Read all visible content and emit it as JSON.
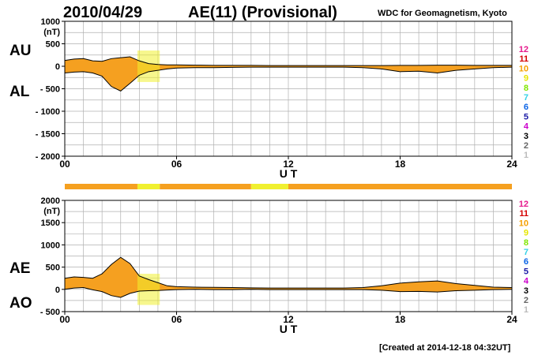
{
  "header": {
    "date": "2010/04/29",
    "title": "AE(11) (Provisional)",
    "source": "WDC for Geomagnetism, Kyoto"
  },
  "footer": {
    "created": "[Created at 2014-12-18 04:32UT]"
  },
  "legend_levels": [
    {
      "label": "12",
      "color": "#e6198c"
    },
    {
      "label": "11",
      "color": "#d40000"
    },
    {
      "label": "10",
      "color": "#f5a000"
    },
    {
      "label": "9",
      "color": "#e6e600"
    },
    {
      "label": "8",
      "color": "#7fe600"
    },
    {
      "label": "7",
      "color": "#33d2e6"
    },
    {
      "label": "6",
      "color": "#0a64e6"
    },
    {
      "label": "5",
      "color": "#1a1aa6"
    },
    {
      "label": "4",
      "color": "#cc00cc"
    },
    {
      "label": "3",
      "color": "#000000"
    },
    {
      "label": "2",
      "color": "#666666"
    },
    {
      "label": "1",
      "color": "#bbbbbb"
    }
  ],
  "colors": {
    "station_10": "#f5a020",
    "station_9": "#f0f030",
    "grid": "#b0b0b0"
  },
  "chart_data": [
    {
      "type": "area",
      "upper_label": "AU",
      "lower_label": "AL",
      "ylabel": "(nT)",
      "xlabel": "U T",
      "xlim": [
        0,
        24
      ],
      "ylim": [
        -2000,
        1000
      ],
      "yticks": [
        1000,
        500,
        0,
        -500,
        -1000,
        -1500,
        -2000
      ],
      "ytick_labels": [
        "1000",
        "500",
        "0",
        "- 500",
        "- 1000",
        "- 1500",
        "- 2000"
      ],
      "xticks": [
        0,
        6,
        12,
        18,
        24
      ],
      "xtick_labels": [
        "00",
        "06",
        "12",
        "18",
        "24"
      ],
      "series": [
        {
          "name": "AU",
          "x": [
            0,
            0.5,
            1,
            1.5,
            2,
            2.5,
            3,
            3.5,
            4,
            4.5,
            5,
            5.5,
            6,
            7,
            8,
            9,
            10,
            11,
            12,
            13,
            14,
            15,
            16,
            17,
            18,
            19,
            20,
            21,
            22,
            23,
            24
          ],
          "values": [
            130,
            160,
            170,
            120,
            110,
            170,
            190,
            210,
            120,
            60,
            40,
            30,
            30,
            25,
            20,
            20,
            20,
            15,
            15,
            15,
            15,
            15,
            15,
            15,
            20,
            20,
            25,
            25,
            20,
            20,
            20
          ]
        },
        {
          "name": "AL",
          "x": [
            0,
            0.5,
            1,
            1.5,
            2,
            2.5,
            3,
            3.5,
            4,
            4.5,
            5,
            5.5,
            6,
            7,
            8,
            9,
            10,
            11,
            12,
            13,
            14,
            15,
            16,
            17,
            18,
            19,
            20,
            21,
            22,
            23,
            24
          ],
          "values": [
            -150,
            -130,
            -120,
            -150,
            -220,
            -450,
            -550,
            -380,
            -200,
            -120,
            -90,
            -60,
            -40,
            -30,
            -30,
            -25,
            -20,
            -20,
            -20,
            -20,
            -20,
            -20,
            -30,
            -60,
            -120,
            -110,
            -150,
            -90,
            -60,
            -30,
            -20
          ]
        }
      ]
    },
    {
      "type": "area",
      "upper_label": "AE",
      "lower_label": "AO",
      "ylabel": "(nT)",
      "xlabel": "U T",
      "xlim": [
        0,
        24
      ],
      "ylim": [
        -500,
        2000
      ],
      "yticks": [
        2000,
        1500,
        1000,
        500,
        0,
        -500
      ],
      "ytick_labels": [
        "2000",
        "1500",
        "1000",
        "500",
        "0",
        "- 500"
      ],
      "xticks": [
        0,
        6,
        12,
        18,
        24
      ],
      "xtick_labels": [
        "00",
        "06",
        "12",
        "18",
        "24"
      ],
      "series": [
        {
          "name": "AE",
          "x": [
            0,
            0.5,
            1,
            1.5,
            2,
            2.5,
            3,
            3.5,
            4,
            4.5,
            5,
            5.5,
            6,
            7,
            8,
            9,
            10,
            11,
            12,
            13,
            14,
            15,
            16,
            17,
            18,
            19,
            20,
            21,
            22,
            23,
            24
          ],
          "values": [
            250,
            280,
            270,
            250,
            350,
            560,
            720,
            580,
            300,
            220,
            150,
            80,
            60,
            50,
            45,
            40,
            35,
            30,
            30,
            30,
            30,
            30,
            40,
            80,
            140,
            170,
            190,
            130,
            90,
            50,
            40
          ]
        },
        {
          "name": "AO",
          "x": [
            0,
            0.5,
            1,
            1.5,
            2,
            2.5,
            3,
            3.5,
            4,
            4.5,
            5,
            5.5,
            6,
            7,
            8,
            9,
            10,
            11,
            12,
            13,
            14,
            15,
            16,
            17,
            18,
            19,
            20,
            21,
            22,
            23,
            24
          ],
          "values": [
            0,
            30,
            40,
            -10,
            -50,
            -140,
            -180,
            -90,
            -40,
            -30,
            -25,
            -15,
            -5,
            0,
            -5,
            -5,
            0,
            -5,
            -5,
            -5,
            -5,
            -5,
            -5,
            -20,
            -50,
            -45,
            -60,
            -30,
            -20,
            -5,
            0
          ]
        }
      ],
      "station_bar": {
        "segments": [
          {
            "start": 0,
            "end": 3.9,
            "level": "10"
          },
          {
            "start": 3.9,
            "end": 5.1,
            "level": "9"
          },
          {
            "start": 5.1,
            "end": 10,
            "level": "10"
          },
          {
            "start": 10,
            "end": 12,
            "level": "9"
          },
          {
            "start": 12,
            "end": 24,
            "level": "10"
          }
        ]
      }
    }
  ]
}
